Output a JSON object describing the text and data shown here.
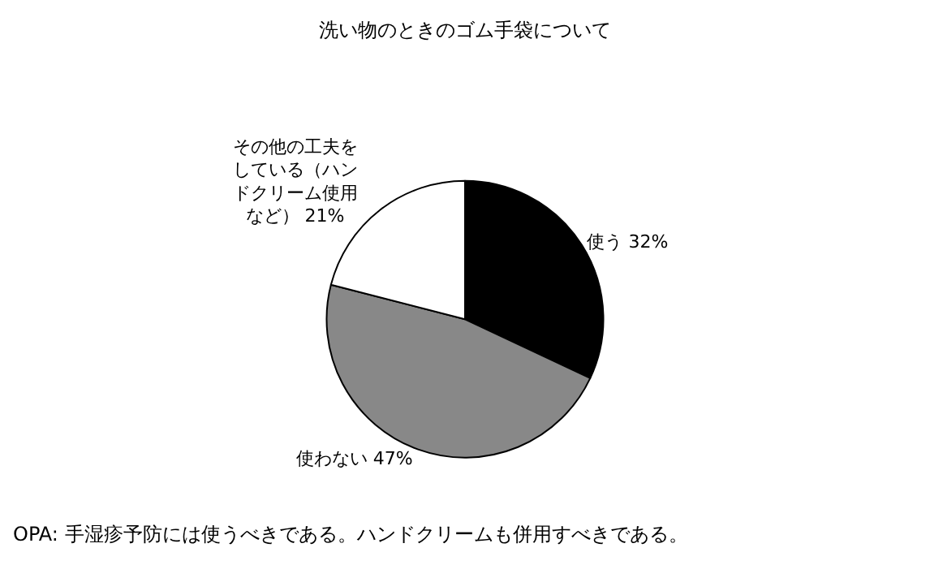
{
  "chart_data": {
    "type": "pie",
    "title": "洗い物のときのゴム手袋について",
    "categories": [
      "使う",
      "使わない",
      "その他の工夫をしている（ハンドクリーム使用など）"
    ],
    "values": [
      32,
      47,
      21
    ],
    "value_labels": [
      "32%",
      "47%",
      "21%"
    ],
    "colors": [
      "#000000",
      "#888888",
      "#ffffff"
    ],
    "annotations": [
      "OPA: 手湿疹予防には使うべきである。ハンドクリームも併用すべきである。"
    ]
  }
}
